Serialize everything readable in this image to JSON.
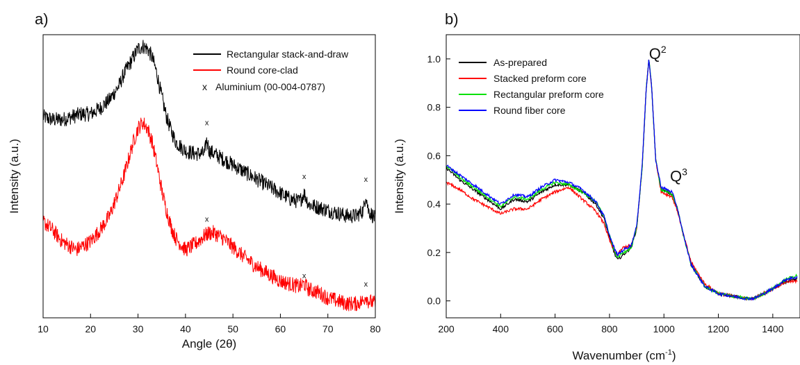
{
  "chart_data": [
    {
      "panel": "a)",
      "type": "line",
      "xlabel": "Angle (2θ)",
      "ylabel": "Intensity (a.u.)",
      "xlim": [
        10,
        80
      ],
      "x_ticks": [
        "10",
        "20",
        "30",
        "40",
        "50",
        "60",
        "70",
        "80"
      ],
      "y_ticks": [],
      "legend_position": "top-right",
      "legend": [
        {
          "label": "Rectangular stack-and-draw",
          "color": "#000000",
          "symbol": "line"
        },
        {
          "label": "Round core-clad",
          "color": "#ff0000",
          "symbol": "line"
        },
        {
          "label": "Aluminium (00-004-0787)",
          "color": "#000000",
          "symbol": "x"
        }
      ],
      "series": [
        {
          "name": "Rectangular stack-and-draw",
          "color": "#000000",
          "x": [
            10,
            12,
            14,
            16,
            18,
            20,
            22,
            24,
            26,
            27,
            28,
            29,
            30,
            31,
            32,
            33,
            34,
            35,
            36,
            37,
            38,
            40,
            42,
            44,
            44.5,
            45,
            46,
            48,
            50,
            52,
            55,
            58,
            60,
            62,
            64,
            65,
            66,
            68,
            70,
            72,
            74,
            76,
            77.5,
            78,
            78.5,
            80
          ],
          "y": [
            0.71,
            0.7,
            0.7,
            0.71,
            0.72,
            0.72,
            0.74,
            0.77,
            0.82,
            0.86,
            0.89,
            0.92,
            0.95,
            0.96,
            0.95,
            0.92,
            0.86,
            0.78,
            0.71,
            0.66,
            0.62,
            0.59,
            0.58,
            0.58,
            0.63,
            0.59,
            0.58,
            0.56,
            0.54,
            0.52,
            0.49,
            0.46,
            0.44,
            0.42,
            0.41,
            0.44,
            0.4,
            0.39,
            0.38,
            0.37,
            0.36,
            0.36,
            0.38,
            0.44,
            0.38,
            0.35
          ]
        },
        {
          "name": "Round core-clad",
          "color": "#ff0000",
          "x": [
            10,
            12,
            14,
            16,
            17,
            18,
            20,
            22,
            24,
            26,
            27,
            28,
            29,
            30,
            31,
            32,
            33,
            34,
            35,
            36,
            37,
            38,
            40,
            42,
            44,
            45,
            46,
            48,
            50,
            52,
            55,
            58,
            60,
            62,
            64,
            65,
            66,
            68,
            70,
            72,
            74,
            76,
            77.5,
            78,
            78.5,
            80
          ],
          "y": [
            0.34,
            0.31,
            0.27,
            0.25,
            0.24,
            0.25,
            0.27,
            0.31,
            0.36,
            0.45,
            0.5,
            0.56,
            0.62,
            0.67,
            0.69,
            0.67,
            0.62,
            0.54,
            0.45,
            0.38,
            0.32,
            0.28,
            0.24,
            0.26,
            0.29,
            0.3,
            0.3,
            0.28,
            0.25,
            0.22,
            0.18,
            0.15,
            0.13,
            0.12,
            0.11,
            0.12,
            0.1,
            0.09,
            0.07,
            0.06,
            0.05,
            0.05,
            0.06,
            0.08,
            0.06,
            0.05
          ]
        }
      ],
      "markers": [
        {
          "symbol": "x",
          "x": 44.5,
          "y": 0.68
        },
        {
          "symbol": "x",
          "x": 65.0,
          "y": 0.49
        },
        {
          "symbol": "x",
          "x": 78.0,
          "y": 0.48
        },
        {
          "symbol": "x",
          "x": 44.5,
          "y": 0.34
        },
        {
          "symbol": "x",
          "x": 65.0,
          "y": 0.14
        },
        {
          "symbol": "x",
          "x": 78.0,
          "y": 0.11
        }
      ]
    },
    {
      "panel": "b)",
      "type": "line",
      "xlabel": "Wavenumber (cm",
      "xlabel_superscript": "-1",
      "xlabel_suffix": ")",
      "ylabel": "Intensity (a.u.)",
      "xlim": [
        200,
        1500
      ],
      "ylim": [
        -0.07,
        1.1
      ],
      "x_ticks": [
        200,
        400,
        600,
        800,
        1000,
        1200,
        1400
      ],
      "y_ticks": [
        0.0,
        0.2,
        0.4,
        0.6,
        0.8,
        1.0
      ],
      "y_tick_labels": [
        "0.0",
        "0.2",
        "0.4",
        "0.6",
        "0.8",
        "1.0"
      ],
      "legend_position": "top-left",
      "annotations": [
        {
          "base": "Q",
          "sup": "2",
          "x": 945,
          "y": 1.0
        },
        {
          "base": "Q",
          "sup": "3",
          "x": 1030,
          "y": 0.47
        }
      ],
      "series": [
        {
          "name": "As-prepared",
          "color": "#000000",
          "x": [
            200,
            250,
            300,
            350,
            400,
            450,
            500,
            550,
            600,
            650,
            700,
            750,
            780,
            800,
            820,
            830,
            850,
            880,
            900,
            920,
            935,
            945,
            955,
            970,
            990,
            1010,
            1030,
            1050,
            1070,
            1100,
            1150,
            1200,
            1250,
            1300,
            1330,
            1350,
            1400,
            1450,
            1500
          ],
          "y": [
            0.55,
            0.5,
            0.46,
            0.42,
            0.38,
            0.42,
            0.41,
            0.45,
            0.48,
            0.48,
            0.45,
            0.4,
            0.34,
            0.26,
            0.19,
            0.17,
            0.19,
            0.22,
            0.3,
            0.55,
            0.88,
            1.0,
            0.88,
            0.58,
            0.46,
            0.45,
            0.44,
            0.38,
            0.28,
            0.15,
            0.06,
            0.03,
            0.02,
            0.01,
            0.01,
            0.02,
            0.05,
            0.08,
            0.09
          ]
        },
        {
          "name": "Stacked preform core",
          "color": "#ff0000",
          "x": [
            200,
            250,
            300,
            350,
            400,
            450,
            500,
            550,
            600,
            650,
            700,
            750,
            780,
            800,
            820,
            830,
            850,
            880,
            900,
            920,
            935,
            945,
            955,
            970,
            990,
            1010,
            1030,
            1050,
            1070,
            1100,
            1150,
            1200,
            1250,
            1300,
            1330,
            1350,
            1400,
            1450,
            1500
          ],
          "y": [
            0.49,
            0.46,
            0.42,
            0.39,
            0.36,
            0.38,
            0.38,
            0.42,
            0.45,
            0.47,
            0.42,
            0.37,
            0.32,
            0.25,
            0.2,
            0.19,
            0.22,
            0.23,
            0.3,
            0.55,
            0.88,
            1.0,
            0.88,
            0.58,
            0.45,
            0.44,
            0.43,
            0.37,
            0.28,
            0.16,
            0.07,
            0.03,
            0.02,
            0.01,
            0.01,
            0.02,
            0.05,
            0.08,
            0.08
          ]
        },
        {
          "name": "Rectangular preform core",
          "color": "#00e000",
          "x": [
            200,
            250,
            300,
            350,
            400,
            450,
            500,
            550,
            600,
            650,
            700,
            750,
            780,
            800,
            820,
            830,
            850,
            880,
            900,
            920,
            935,
            945,
            955,
            970,
            990,
            1010,
            1030,
            1050,
            1070,
            1100,
            1150,
            1200,
            1250,
            1300,
            1330,
            1350,
            1400,
            1450,
            1500
          ],
          "y": [
            0.56,
            0.51,
            0.47,
            0.43,
            0.39,
            0.43,
            0.42,
            0.46,
            0.49,
            0.48,
            0.45,
            0.41,
            0.35,
            0.27,
            0.2,
            0.18,
            0.2,
            0.22,
            0.3,
            0.55,
            0.88,
            1.0,
            0.88,
            0.58,
            0.46,
            0.45,
            0.44,
            0.38,
            0.28,
            0.15,
            0.06,
            0.03,
            0.02,
            0.01,
            0.01,
            0.02,
            0.05,
            0.09,
            0.11
          ]
        },
        {
          "name": "Round fiber core",
          "color": "#0000ff",
          "x": [
            200,
            250,
            300,
            350,
            400,
            450,
            500,
            550,
            600,
            650,
            700,
            750,
            780,
            800,
            820,
            830,
            850,
            880,
            900,
            920,
            935,
            945,
            955,
            970,
            990,
            1010,
            1030,
            1050,
            1070,
            1100,
            1150,
            1200,
            1250,
            1300,
            1330,
            1350,
            1400,
            1450,
            1500
          ],
          "y": [
            0.56,
            0.52,
            0.48,
            0.44,
            0.4,
            0.44,
            0.43,
            0.47,
            0.5,
            0.49,
            0.46,
            0.41,
            0.35,
            0.27,
            0.21,
            0.19,
            0.21,
            0.23,
            0.31,
            0.56,
            0.88,
            1.0,
            0.88,
            0.58,
            0.47,
            0.46,
            0.45,
            0.38,
            0.28,
            0.15,
            0.06,
            0.03,
            0.02,
            0.01,
            0.01,
            0.02,
            0.05,
            0.09,
            0.1
          ]
        }
      ]
    }
  ]
}
